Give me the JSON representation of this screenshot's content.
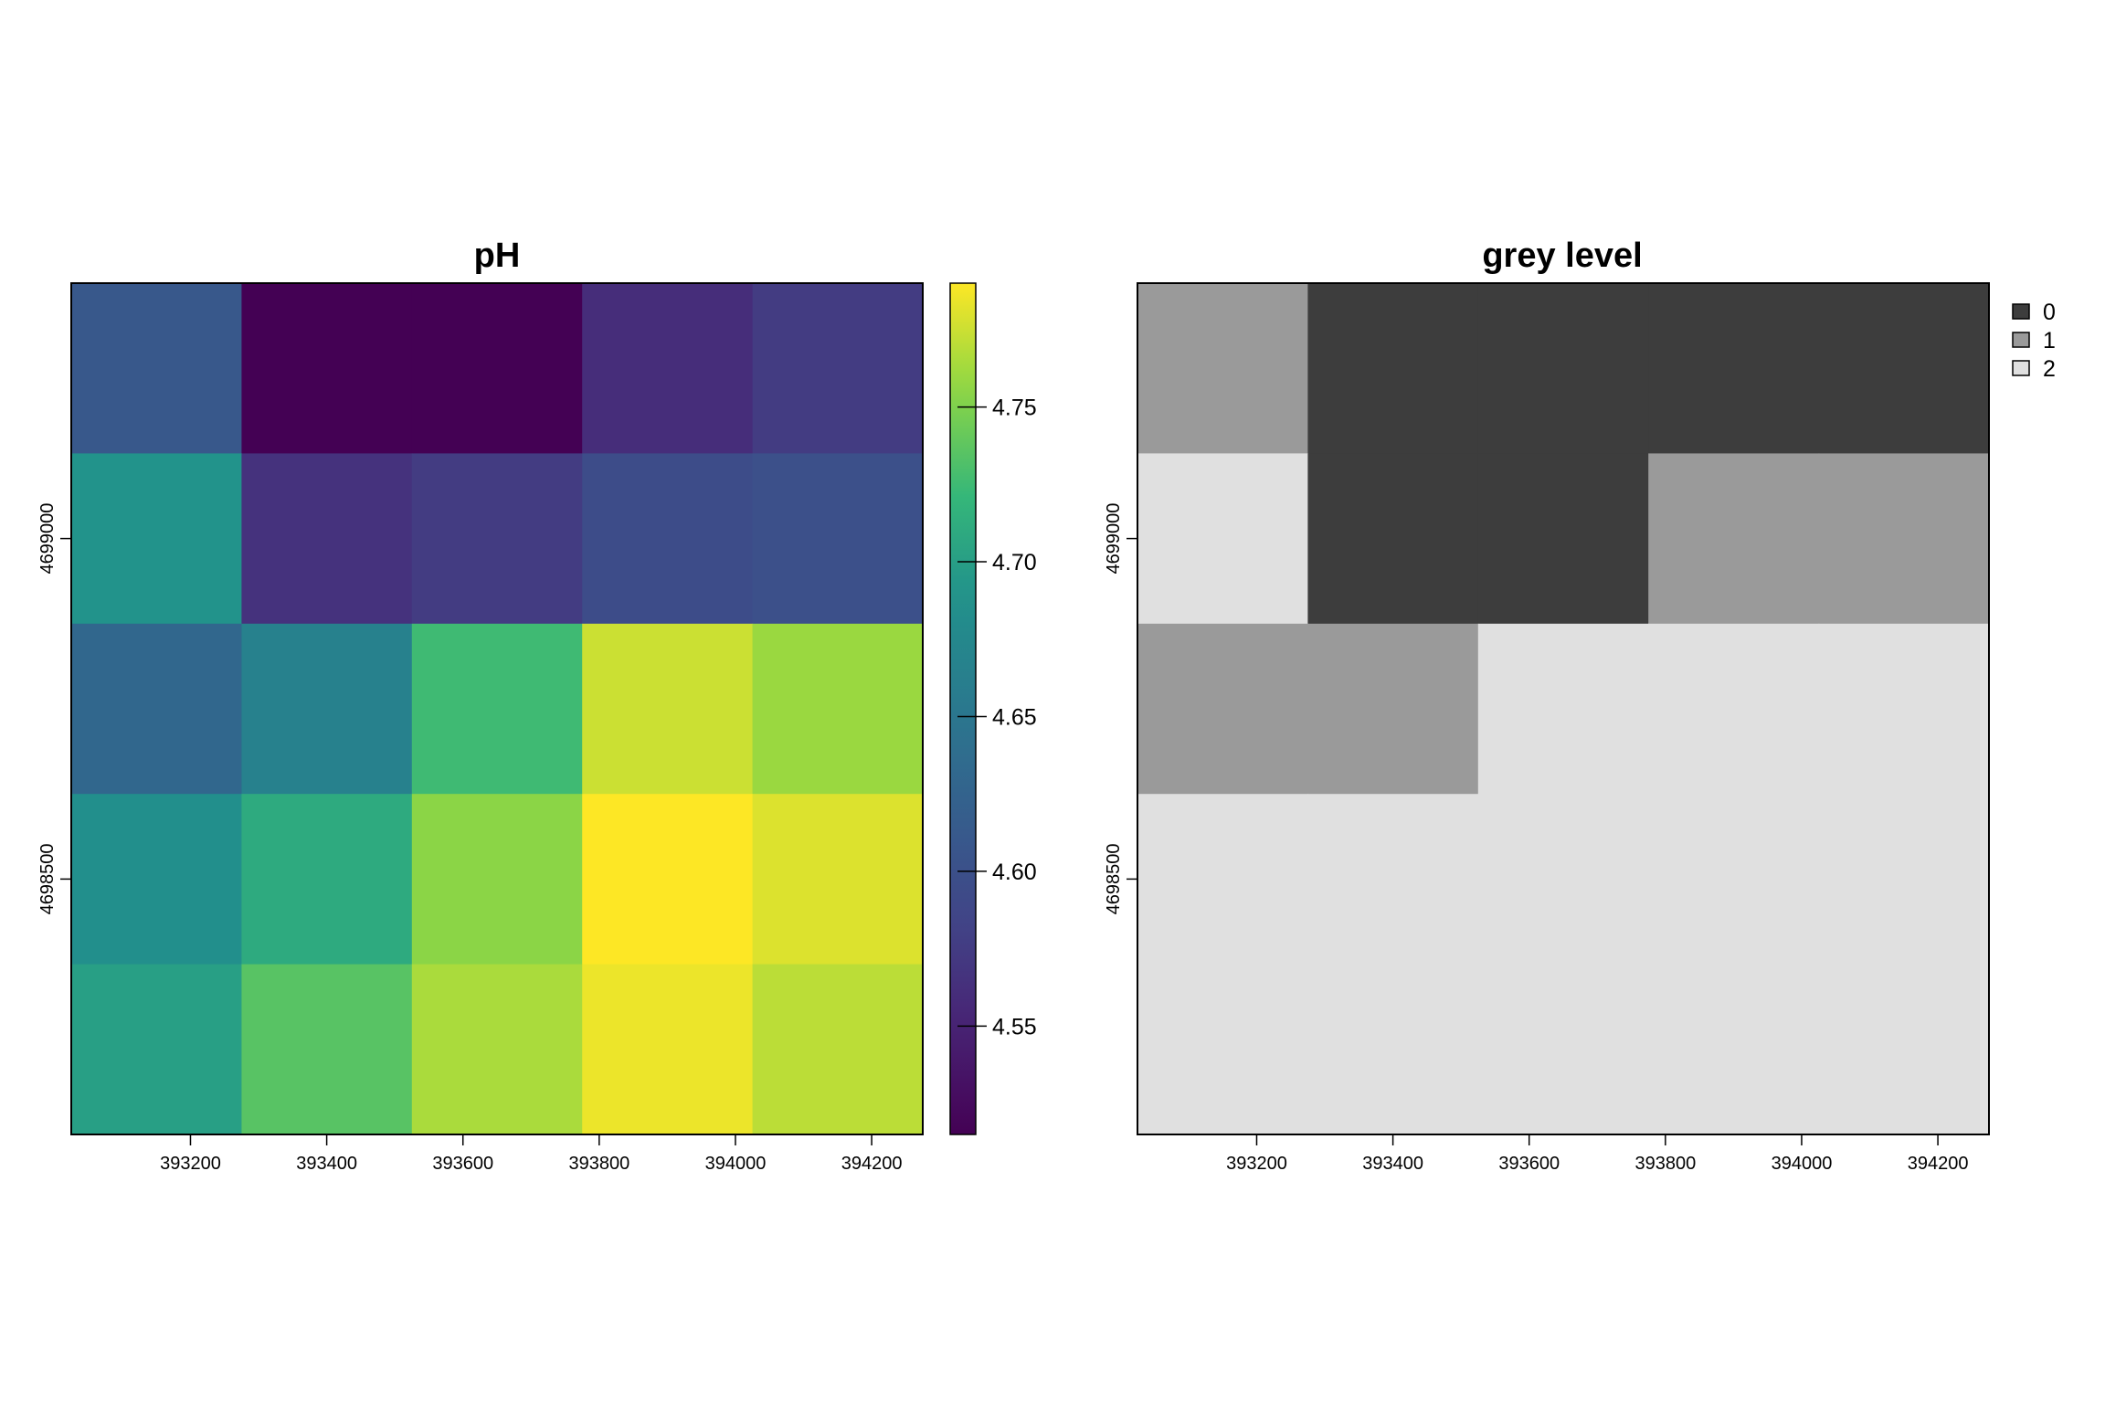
{
  "chart_data": [
    {
      "type": "heatmap",
      "title": "pH",
      "x_centers": [
        393150,
        393400,
        393650,
        393900,
        394150
      ],
      "y_centers": [
        4699250,
        4699000,
        4698750,
        4698500,
        4698250
      ],
      "xlim": [
        393025,
        394275
      ],
      "ylim": [
        4698125,
        4699375
      ],
      "x_ticks": [
        393200,
        393400,
        393600,
        393800,
        394000,
        394200
      ],
      "y_ticks": [
        4698500,
        4699000
      ],
      "values": [
        [
          4.61,
          4.515,
          4.515,
          4.56,
          4.575
        ],
        [
          4.69,
          4.565,
          4.575,
          4.595,
          4.6
        ],
        [
          4.63,
          4.665,
          4.725,
          4.775,
          4.76
        ],
        [
          4.685,
          4.71,
          4.755,
          4.79,
          4.78
        ],
        [
          4.7,
          4.735,
          4.765,
          4.785,
          4.77
        ]
      ],
      "colorbar": {
        "palette": "viridis",
        "min": 4.515,
        "max": 4.79,
        "ticks": [
          "4.55",
          "4.60",
          "4.65",
          "4.70",
          "4.75"
        ]
      },
      "grid": false
    },
    {
      "type": "heatmap",
      "title": "grey level",
      "x_centers": [
        393150,
        393400,
        393650,
        393900,
        394150
      ],
      "y_centers": [
        4699250,
        4699000,
        4698750,
        4698500,
        4698250
      ],
      "xlim": [
        393025,
        394275
      ],
      "ylim": [
        4698125,
        4699375
      ],
      "x_ticks": [
        393200,
        393400,
        393600,
        393800,
        394000,
        394200
      ],
      "y_ticks": [
        4698500,
        4699000
      ],
      "values": [
        [
          1,
          0,
          0,
          0,
          0
        ],
        [
          2,
          0,
          0,
          1,
          1
        ],
        [
          1,
          1,
          2,
          2,
          2
        ],
        [
          2,
          2,
          2,
          2,
          2
        ],
        [
          2,
          2,
          2,
          2,
          2
        ]
      ],
      "legend": {
        "placement": "top-right",
        "entries": [
          {
            "label": "0",
            "color": "#3d3d3d"
          },
          {
            "label": "1",
            "color": "#9a9a9a"
          },
          {
            "label": "2",
            "color": "#e0e0e0"
          }
        ]
      },
      "grid": false
    }
  ]
}
